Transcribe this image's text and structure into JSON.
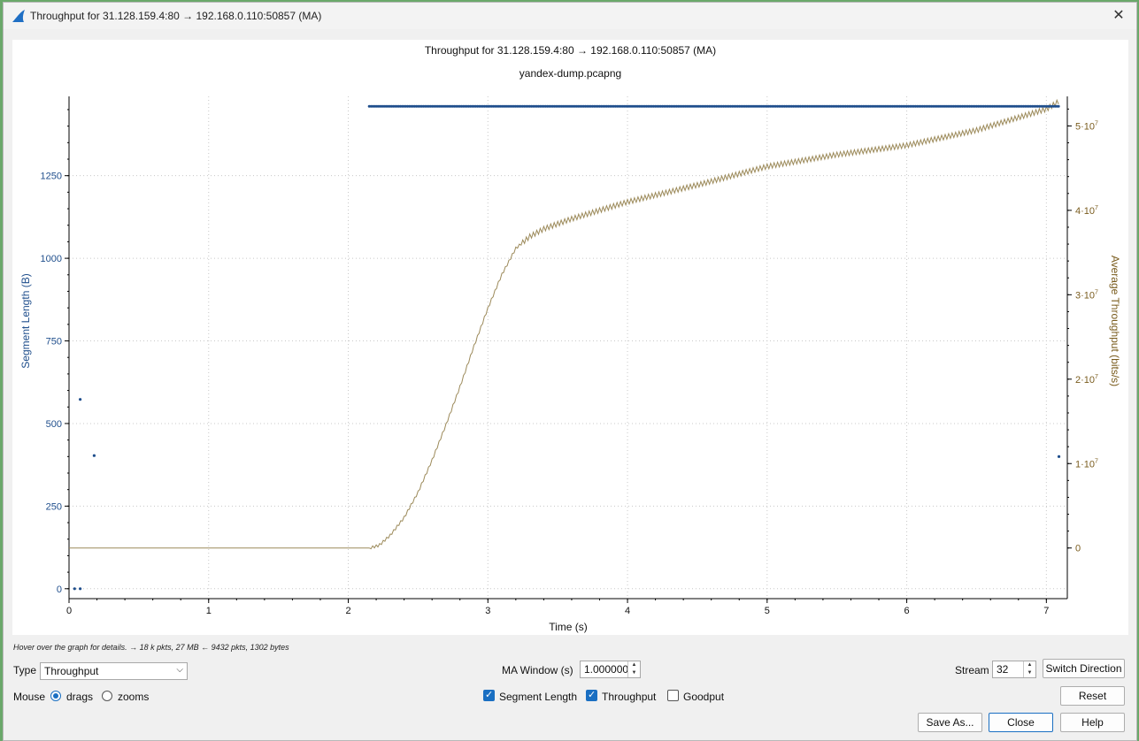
{
  "window": {
    "title": "Throughput for 31.128.159.4:80 → 192.168.0.110:50857 (MA)",
    "close_glyph": "✕",
    "app_icon": "wireshark-fin-icon"
  },
  "plot": {
    "title": "Throughput for 31.128.159.4:80 → 192.168.0.110:50857 (MA)",
    "subtitle": "yandex-dump.pcapng"
  },
  "chart_data": {
    "type": "scatter",
    "grid": true,
    "xlabel": "Time (s)",
    "ylabel_left": "Segment Length (B)",
    "ylabel_right": "Average Throughput (bits/s)",
    "xlim": [
      0,
      7.15
    ],
    "ylim_left": [
      -30,
      1490
    ],
    "ylim_right": [
      -6000000.0,
      53500000.0
    ],
    "x_ticks": [
      "0",
      "1",
      "2",
      "3",
      "4",
      "5",
      "6",
      "7"
    ],
    "y_left_ticks": [
      "0",
      "250",
      "500",
      "750",
      "1000",
      "1250"
    ],
    "y_left_tick_values": [
      0,
      250,
      500,
      750,
      1000,
      1250
    ],
    "y_right_ticks": [
      "0",
      "1·10",
      "2·10",
      "3·10",
      "4·10",
      "5·10"
    ],
    "y_right_tick_exponent": "7",
    "y_right_tick_values": [
      0,
      10000000,
      20000000,
      30000000,
      40000000,
      50000000
    ],
    "series": [
      {
        "name": "Segment Length",
        "color": "#1f4e8c",
        "kind": "scatter",
        "points": [
          [
            0.04,
            0
          ],
          [
            0.08,
            0
          ],
          [
            0.08,
            573
          ],
          [
            0.18,
            403
          ],
          [
            7.09,
            400
          ]
        ],
        "dense_run": {
          "x_start": 2.15,
          "x_end": 7.09,
          "y": 1460
        }
      },
      {
        "name": "Throughput",
        "color": "#9c8a5a",
        "kind": "line",
        "points": [
          [
            0,
            0
          ],
          [
            2.15,
            0
          ],
          [
            2.22,
            300000
          ],
          [
            2.3,
            1500000
          ],
          [
            2.4,
            3600000
          ],
          [
            2.5,
            6600000
          ],
          [
            2.6,
            10400000
          ],
          [
            2.7,
            14600000
          ],
          [
            2.8,
            19100000
          ],
          [
            2.9,
            23900000
          ],
          [
            3.0,
            28400000
          ],
          [
            3.1,
            32400000
          ],
          [
            3.2,
            35500000
          ],
          [
            3.3,
            36900000
          ],
          [
            3.4,
            37800000
          ],
          [
            3.6,
            39000000
          ],
          [
            4.0,
            41000000
          ],
          [
            4.5,
            43000000
          ],
          [
            5.0,
            45200000
          ],
          [
            5.5,
            46600000
          ],
          [
            6.0,
            47700000
          ],
          [
            6.5,
            49500000
          ],
          [
            7.0,
            52000000
          ],
          [
            7.09,
            52900000
          ]
        ]
      }
    ]
  },
  "hint": "Hover over the graph for details. → 18 k pkts, 27 MB ← 9432 pkts, 1302 bytes",
  "controls": {
    "type_label": "Type",
    "type_value": "Throughput",
    "ma_label": "MA Window (s)",
    "ma_value": "1.000000",
    "stream_label": "Stream",
    "stream_value": "32",
    "switch_direction": "Switch Direction",
    "mouse_label": "Mouse",
    "drags_label": "drags",
    "zooms_label": "zooms",
    "mouse_mode": "drags",
    "segment_length_label": "Segment Length",
    "segment_length_checked": true,
    "throughput_label": "Throughput",
    "throughput_checked": true,
    "goodput_label": "Goodput",
    "goodput_checked": false,
    "reset": "Reset",
    "save_as": "Save As...",
    "close": "Close",
    "help": "Help"
  }
}
